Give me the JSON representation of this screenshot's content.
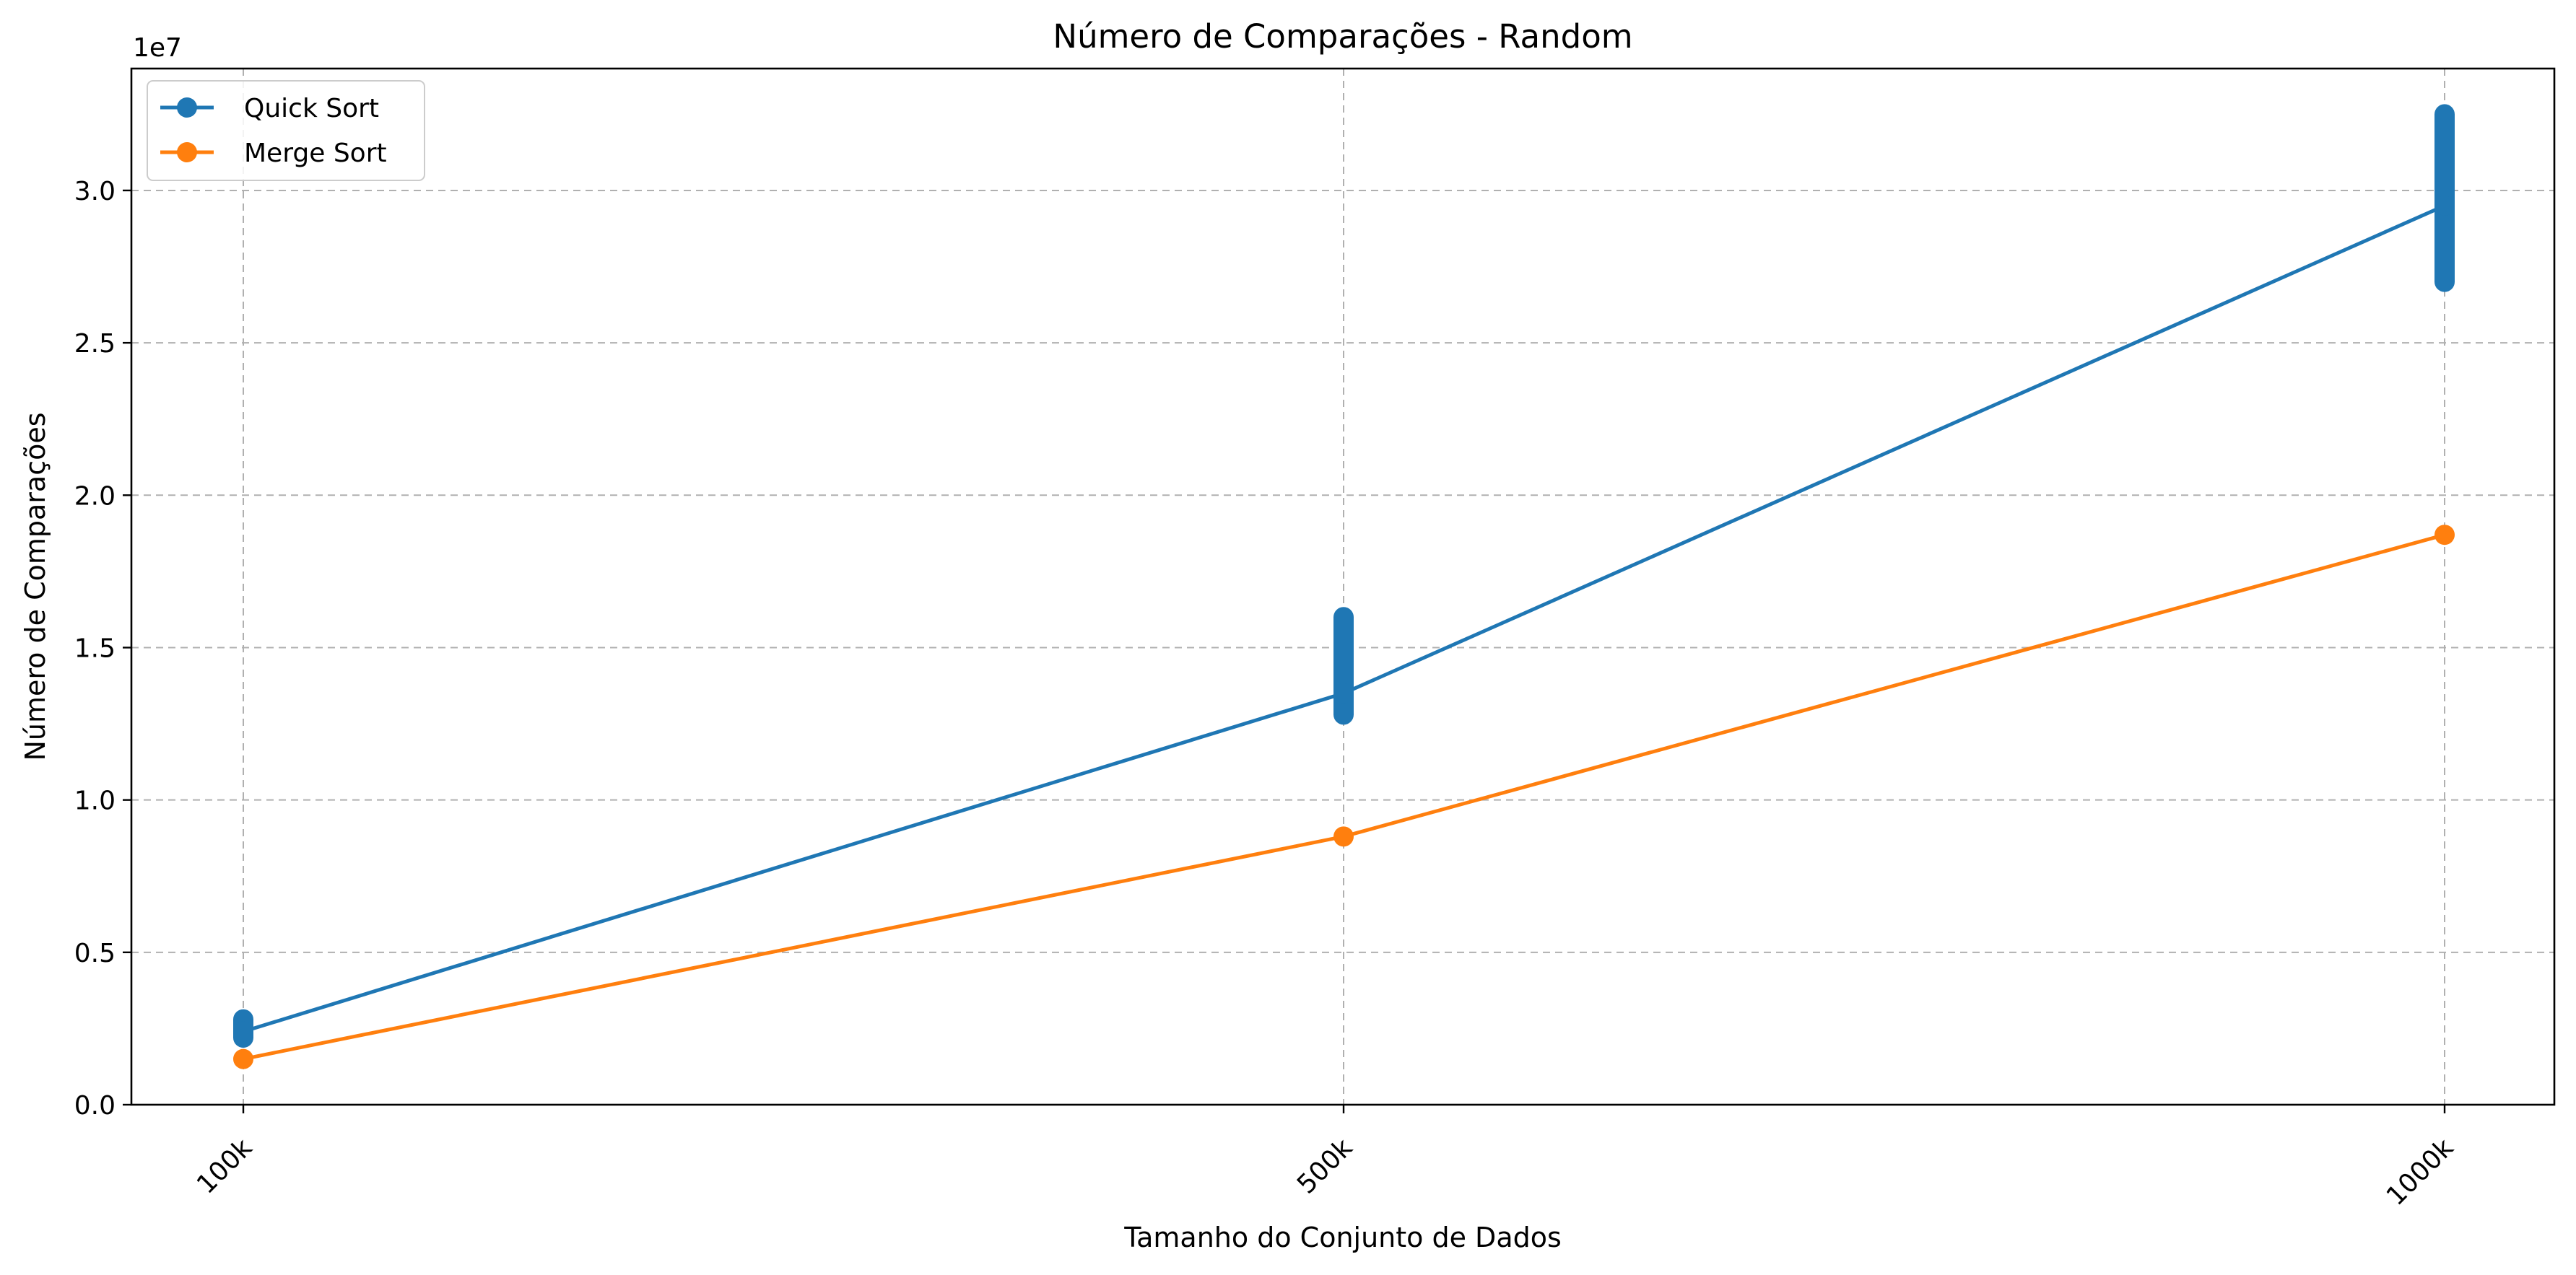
{
  "chart_data": {
    "type": "line",
    "title": "Número de Comparações - Random",
    "xlabel": "Tamanho do Conjunto de Dados",
    "ylabel": "Número de Comparações",
    "y_scale_label": "1e7",
    "categories": [
      "100k",
      "500k",
      "1000k"
    ],
    "yticks": [
      "0.0",
      "0.5",
      "1.0",
      "1.5",
      "2.0",
      "2.5",
      "3.0"
    ],
    "ytick_values": [
      0,
      5000000,
      10000000,
      15000000,
      20000000,
      25000000,
      30000000
    ],
    "ylim": [
      0,
      34000000
    ],
    "grid": true,
    "legend_position": "top-left",
    "series": [
      {
        "name": "Quick Sort",
        "color": "#1f77b4",
        "values": [
          2400000,
          13500000,
          29500000
        ],
        "spread": [
          [
            2200000,
            2800000
          ],
          [
            12800000,
            16000000
          ],
          [
            27000000,
            32500000
          ]
        ]
      },
      {
        "name": "Merge Sort",
        "color": "#ff7f0e",
        "values": [
          1500000,
          8800000,
          18700000
        ],
        "spread": [
          [
            1500000,
            1500000
          ],
          [
            8800000,
            8800000
          ],
          [
            18700000,
            18700000
          ]
        ]
      }
    ]
  }
}
